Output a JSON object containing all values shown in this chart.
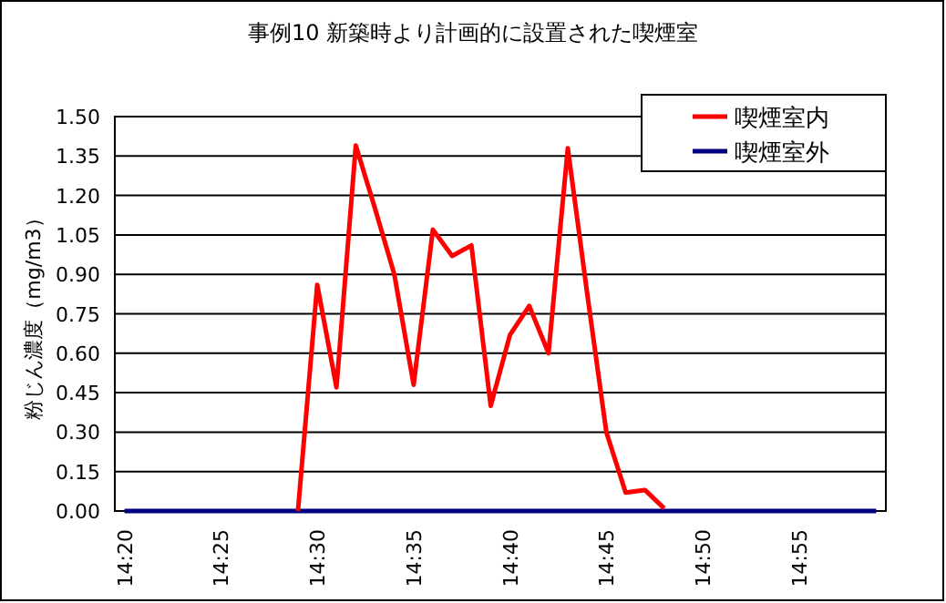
{
  "chart_data": {
    "type": "line",
    "title": "事例10 新築時より計画的に設置された喫煙室",
    "ylabel": "粉じん濃度（mg/m3）",
    "categories": [
      "14:20",
      null,
      null,
      null,
      null,
      "14:25",
      null,
      null,
      null,
      null,
      "14:30",
      null,
      null,
      null,
      null,
      "14:35",
      null,
      null,
      null,
      null,
      "14:40",
      null,
      null,
      null,
      null,
      "14:45",
      null,
      null,
      null,
      null,
      "14:50",
      null,
      null,
      null,
      null,
      "14:55",
      null,
      null,
      null,
      null
    ],
    "series": [
      {
        "name": "喫煙室内",
        "color": "#ff0000",
        "values": [
          null,
          null,
          null,
          null,
          null,
          null,
          null,
          null,
          null,
          0,
          0.86,
          0.47,
          1.39,
          1.15,
          0.9,
          0.48,
          1.07,
          0.97,
          1.01,
          0.4,
          0.67,
          0.78,
          0.6,
          1.38,
          0.83,
          0.3,
          0.07,
          0.08,
          0.01,
          null,
          null,
          null,
          null,
          null,
          null,
          null,
          null,
          null,
          null,
          null
        ]
      },
      {
        "name": "喫煙室外",
        "color": "#000080",
        "values": [
          0,
          0,
          0,
          0,
          0,
          0,
          0,
          0,
          0,
          0,
          0,
          0,
          0,
          0,
          0,
          0,
          0,
          0,
          0,
          0,
          0,
          0,
          0,
          0,
          0,
          0,
          0,
          0,
          0,
          0,
          0,
          0,
          0,
          0,
          0,
          0,
          0,
          0,
          0,
          0
        ]
      }
    ],
    "ylim": [
      0,
      1.5
    ],
    "yticks": [
      {
        "value": 0,
        "label": "0.00"
      },
      {
        "value": 0.15,
        "label": "0.15"
      },
      {
        "value": 0.3,
        "label": "0.30"
      },
      {
        "value": 0.45,
        "label": "0.45"
      },
      {
        "value": 0.6,
        "label": "0.60"
      },
      {
        "value": 0.75,
        "label": "0.75"
      },
      {
        "value": 0.9,
        "label": "0.90"
      },
      {
        "value": 1.05,
        "label": "1.05"
      },
      {
        "value": 1.2,
        "label": "1.20"
      },
      {
        "value": 1.35,
        "label": "1.35"
      },
      {
        "value": 1.5,
        "label": "1.50"
      }
    ],
    "grid": "y",
    "legend": "top right",
    "marker": "none",
    "line_style": "solid"
  }
}
